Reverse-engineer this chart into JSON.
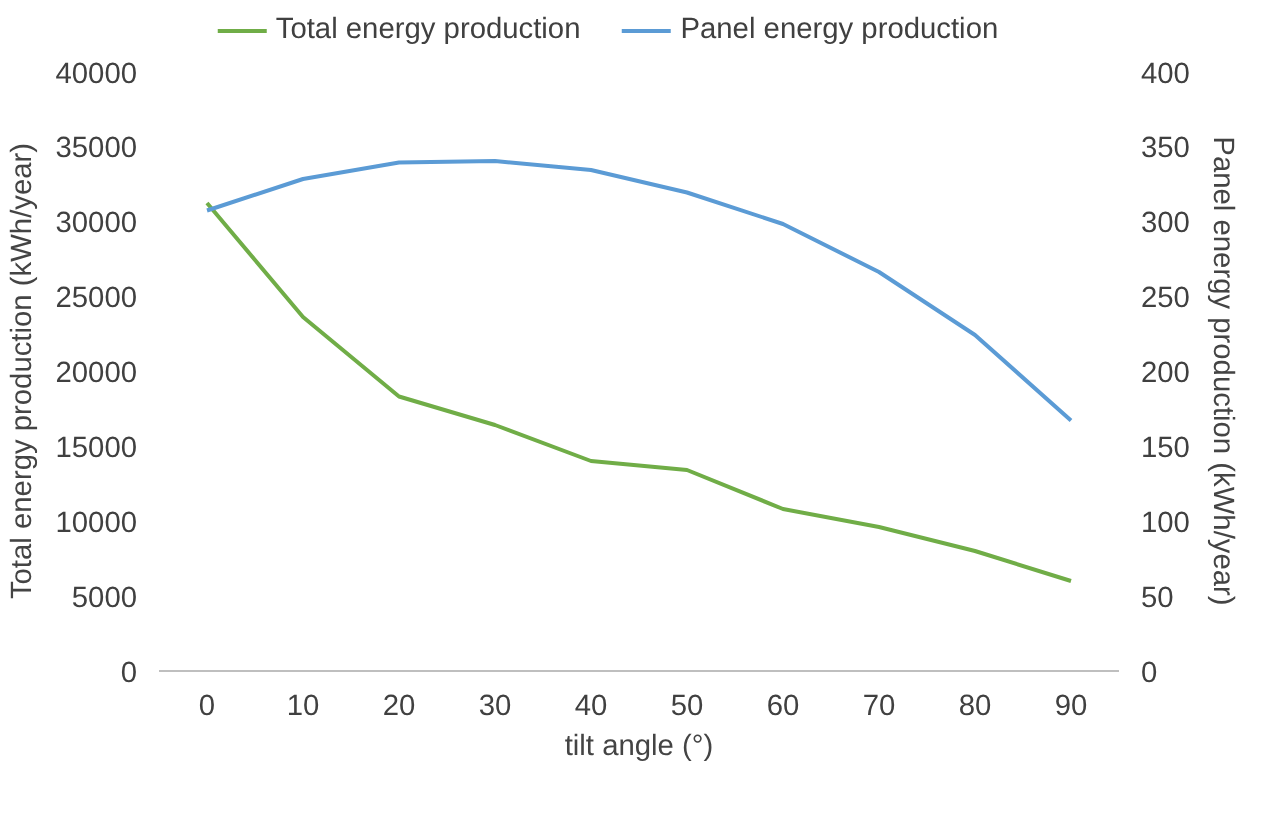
{
  "chart_data": {
    "type": "line",
    "xlabel": "tilt angle (°)",
    "ylabel": "Total energy production (kWh/year)",
    "y2label": "Panel energy production (kWh/year)",
    "categories": [
      "0",
      "10",
      "20",
      "30",
      "40",
      "50",
      "60",
      "70",
      "80",
      "90"
    ],
    "series": [
      {
        "name": "Total energy production",
        "color": "#70ad47",
        "values": [
          31200,
          23600,
          18300,
          16400,
          14000,
          13400,
          10800,
          9600,
          8000,
          6000
        ]
      },
      {
        "name": "Panel energy production",
        "color": "#5b9bd5",
        "axis": "y2",
        "values": [
          307,
          328,
          339,
          340,
          334,
          319,
          298,
          266,
          224,
          167
        ]
      }
    ],
    "ylim": [
      0,
      40000
    ],
    "yticks": [
      0,
      5000,
      10000,
      15000,
      20000,
      25000,
      30000,
      35000,
      40000
    ],
    "y2lim": [
      0,
      400
    ],
    "y2ticks": [
      0,
      50,
      100,
      150,
      200,
      250,
      300,
      350,
      400
    ],
    "grid": false,
    "legend": "top",
    "marker": "none",
    "line_style": "solid"
  }
}
